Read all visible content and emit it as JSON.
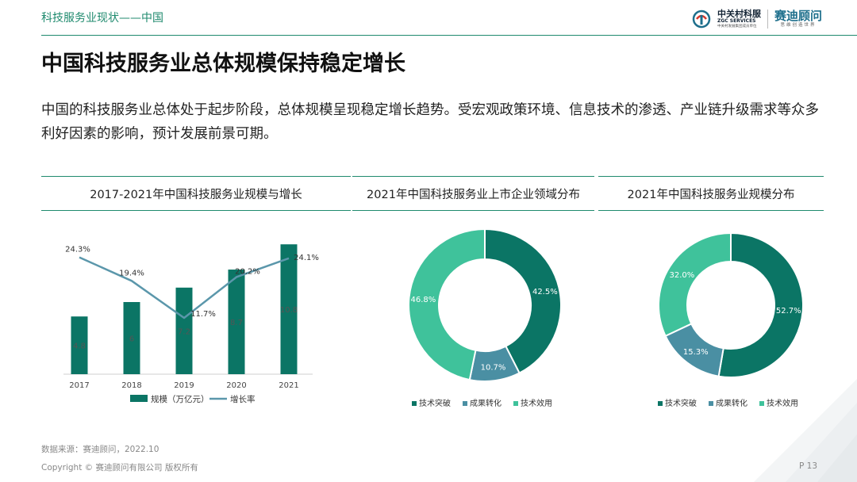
{
  "header": {
    "section_title": "科技服务业现状——中国"
  },
  "logos": {
    "zgc_cn": "中关村科服",
    "zgc_en": "ZGC SERVICES",
    "zgc_tag": "中关村发展集团成员单位",
    "saidi_cn": "赛迪顾问",
    "saidi_sub": "思维创造世界"
  },
  "title": "中国科技服务业总体规模保持稳定增长",
  "intro": "中国的科技服务业总体处于起步阶段，总体规模呈现稳定增长趋势。受宏观政策环境、信息技术的渗透、产业链升级需求等众多利好因素的影响，预计发展前景可期。",
  "colors": {
    "dark_green": "#0b7565",
    "teal_blue": "#4a8fa3",
    "light_green": "#3fc29b",
    "line_blue": "#5b97ab",
    "accent": "#1f8a6e"
  },
  "chart_data": [
    {
      "type": "bar",
      "title": "2017-2021年中国科技服务业规模与增长",
      "categories": [
        "2017",
        "2018",
        "2019",
        "2020",
        "2021"
      ],
      "series": [
        {
          "name": "规模（万亿元）",
          "type": "bar",
          "values": [
            4.8,
            6,
            7.2,
            8.7,
            10.8
          ],
          "labels": [
            "4.8",
            "6",
            "7.2",
            "8.7",
            "10.8"
          ]
        },
        {
          "name": "增长率",
          "type": "line",
          "values": [
            24.3,
            19.4,
            11.7,
            20.2,
            24.1
          ],
          "labels": [
            "24.3%",
            "19.4%",
            "11.7%",
            "20.2%",
            "24.1%"
          ]
        }
      ],
      "ylim": [
        0,
        12
      ],
      "y2lim": [
        0,
        30
      ],
      "legend": "bottom"
    },
    {
      "type": "pie",
      "donut": true,
      "title": "2021年中国科技服务业上市企业领域分布",
      "slices": [
        {
          "label": "技术突破",
          "value": 42.5,
          "text": "42.5%"
        },
        {
          "label": "成果转化",
          "value": 10.7,
          "text": "10.7%"
        },
        {
          "label": "技术效用",
          "value": 46.8,
          "text": "46.8%"
        }
      ],
      "legend": "bottom"
    },
    {
      "type": "pie",
      "donut": true,
      "title": "2021年中国科技服务业规模分布",
      "slices": [
        {
          "label": "技术突破",
          "value": 52.7,
          "text": "52.7%"
        },
        {
          "label": "成果转化",
          "value": 15.3,
          "text": "15.3%"
        },
        {
          "label": "技术效用",
          "value": 32.0,
          "text": "32.0%"
        }
      ],
      "legend": "bottom"
    }
  ],
  "footer": {
    "source": "数据来源：赛迪顾问，2022.10",
    "copyright": "Copyright © 赛迪顾问有限公司 版权所有",
    "page": "P 13"
  }
}
